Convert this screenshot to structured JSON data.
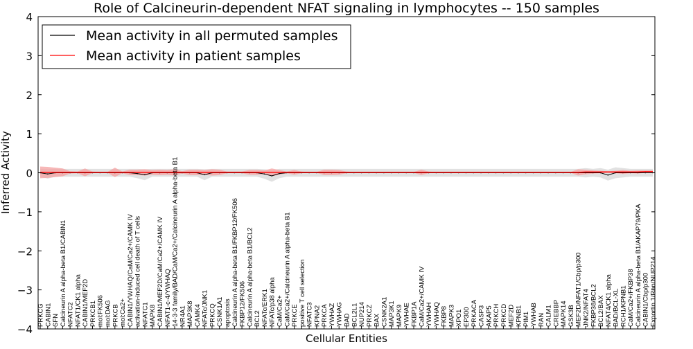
{
  "chart_data": {
    "type": "line",
    "title": "Role of Calcineurin-dependent NFAT signaling in lymphocytes -- 150 samples",
    "xlabel": "Cellular Entities",
    "ylabel": "Inferred Activity",
    "ylim": [
      -4,
      4
    ],
    "yticks": [
      "4",
      "3",
      "2",
      "1",
      "0",
      "−1",
      "−2",
      "−3",
      "−4"
    ],
    "ytick_values": [
      4,
      3,
      2,
      1,
      0,
      -1,
      -2,
      -3,
      -4
    ],
    "legend_position": "top-left",
    "grid": false,
    "categories": [
      "PRKCG",
      "CABIN1",
      "SFN",
      "Calcineurin A alpha-beta B1/CABIN1",
      "NFATC2",
      "NFAT1/CK1 alpha",
      "CABIN1/MEF2D",
      "PRKCB1",
      "mol:FK506",
      "mol:DAG",
      "PRKCB",
      "mol:Ca2+",
      "CABIN1/YWHAQ/CaM/Ca2+/CAMK IV",
      "activation-induced cell death of T cells",
      "NFATC1",
      "MAPK8",
      "CABIN1/MEF2D/CaM/Ca2+/CAMK IV",
      "NFAT1-c-4/YWHAQ",
      "14-3-3 family/BAD/CaM/Ca2+/Calcineurin A alpha-beta B1",
      "NR4A1",
      "MAP3K8",
      "CAMK4",
      "NFATc/JNK1",
      "PRKCQ",
      "CSNK1A1",
      "apoptosis",
      "Calcineurin A alpha-beta B1/FKBP12/FK506",
      "FKBP12/FK506",
      "Calcineurin A alpha-beta B1/BCL2",
      "BCL2",
      "NFATc/ERK1",
      "NFATc/p38 alpha",
      "CaM/Ca2+",
      "CaM/Ca2+/Calcineurin A alpha-beta B1",
      "PRKCE",
      "positive T cell selection",
      "NFATC3",
      "KPNA2",
      "PRKCA",
      "YWHAZ",
      "YWHAG",
      "BAD",
      "BCL2L1",
      "NUP214",
      "PRKCZ",
      "BAX",
      "CSNK2A1",
      "MAP3K1",
      "MAPK9",
      "YWHAE",
      "FKBP1A",
      "CaM/Ca2+/CAMK IV",
      "YWHAH",
      "YWHAQ",
      "FKBP8",
      "MAPK3",
      "XPO1",
      "EP300",
      "PRKACA",
      "CASP3",
      "AKAP5",
      "PRKCH",
      "PRKCD",
      "MEF2D",
      "KPNB1",
      "PIM1",
      "YWHAB",
      "RAN",
      "CALM1",
      "CREBBP",
      "MAPK14",
      "GSK3B",
      "MEF2D/NFAT1/Cbp/p300",
      "JNK2/NFAT4",
      "FKBP38/BCL2",
      "BCL2/BAX",
      "NFAT4/CK1 alpha",
      "BAD/BCL-XL",
      "RCH1/KPNB1",
      "CaM/Ca2+/FKBP38",
      "Calcineurin A alpha-beta B1/AKAP79/PKA",
      "CABIN1/Cbp/p300",
      "Exportin 1/Ran/NUP214"
    ],
    "series": [
      {
        "name": "Mean activity in all permuted samples",
        "color": "#000000",
        "band_color": "#d9d9d9",
        "values": [
          0,
          -0.03,
          0,
          0,
          0,
          0,
          0,
          0,
          0,
          0,
          0,
          0,
          0,
          -0.02,
          -0.05,
          0,
          0,
          0,
          0,
          0,
          0,
          0,
          -0.05,
          0,
          0,
          0,
          0,
          0,
          0,
          0,
          -0.03,
          -0.08,
          -0.02,
          0,
          0,
          0,
          0,
          0,
          0,
          0,
          0,
          0,
          0,
          0,
          0,
          0,
          0,
          0,
          0,
          0,
          0,
          0,
          0,
          0,
          0,
          0,
          0,
          0,
          0,
          0,
          0,
          0,
          0,
          0,
          0,
          0,
          0,
          0,
          0,
          0,
          0,
          0,
          0,
          0,
          0,
          0,
          -0.06,
          0,
          0,
          0,
          0,
          0,
          0
        ],
        "spread": [
          0.1,
          0.12,
          0.1,
          0.1,
          0.1,
          0.1,
          0.1,
          0.1,
          0.1,
          0.1,
          0.1,
          0.1,
          0.1,
          0.12,
          0.14,
          0.1,
          0.1,
          0.1,
          0.1,
          0.1,
          0.1,
          0.1,
          0.14,
          0.1,
          0.1,
          0.1,
          0.1,
          0.1,
          0.1,
          0.1,
          0.12,
          0.15,
          0.12,
          0.1,
          0.1,
          0.1,
          0.1,
          0.1,
          0.1,
          0.1,
          0.1,
          0.1,
          0.1,
          0.1,
          0.1,
          0.1,
          0.1,
          0.1,
          0.1,
          0.1,
          0.1,
          0.1,
          0.1,
          0.1,
          0.1,
          0.1,
          0.1,
          0.1,
          0.1,
          0.1,
          0.1,
          0.1,
          0.1,
          0.1,
          0.1,
          0.1,
          0.1,
          0.1,
          0.1,
          0.1,
          0.1,
          0.1,
          0.1,
          0.12,
          0.1,
          0.12,
          0.14,
          0.14,
          0.12,
          0.1,
          0.1,
          0.1,
          0.1
        ]
      },
      {
        "name": "Mean activity in patient samples",
        "color": "#ff0000",
        "band_color": "#f4a0a0",
        "values": [
          0.01,
          0.01,
          0.01,
          0.01,
          0.01,
          0.01,
          0.01,
          0.01,
          0.01,
          0.01,
          0.01,
          0.01,
          0.01,
          0.01,
          0.01,
          0.01,
          0.01,
          0.01,
          0.01,
          0.01,
          0.01,
          0.01,
          0.01,
          0.01,
          0.01,
          0.01,
          0.01,
          0.01,
          0.01,
          0.01,
          0.01,
          0.01,
          0.01,
          0.01,
          0.01,
          0.01,
          0.01,
          0.01,
          0.01,
          0.01,
          0.01,
          0.01,
          0.01,
          0.01,
          0.01,
          0.01,
          0.01,
          0.01,
          0.01,
          0.01,
          0.01,
          0.01,
          0.01,
          0.01,
          0.01,
          0.01,
          0.01,
          0.01,
          0.01,
          0.01,
          0.01,
          0.01,
          0.01,
          0.01,
          0.01,
          0.01,
          0.01,
          0.01,
          0.01,
          0.01,
          0.01,
          0.01,
          0.01,
          0.02,
          0.02,
          0.02,
          0.02,
          0.02,
          0.02,
          0.02,
          0.02,
          0.03,
          0.03
        ],
        "spread": [
          0.15,
          0.14,
          0.12,
          0.1,
          0.03,
          0.02,
          0.1,
          0.02,
          0.01,
          0.01,
          0.12,
          0.02,
          0.07,
          0.07,
          0.08,
          0.06,
          0.07,
          0.06,
          0.08,
          0.03,
          0.07,
          0.07,
          0.06,
          0.08,
          0.07,
          0.02,
          0.02,
          0.02,
          0.06,
          0.06,
          0.05,
          0.1,
          0.06,
          0.02,
          0.06,
          0.02,
          0.01,
          0.01,
          0.07,
          0.07,
          0.06,
          0.02,
          0.01,
          0.01,
          0.01,
          0.01,
          0.01,
          0.01,
          0.01,
          0.01,
          0.01,
          0.07,
          0.02,
          0.01,
          0.01,
          0.01,
          0.01,
          0.01,
          0.01,
          0.01,
          0.01,
          0.01,
          0.01,
          0.01,
          0.01,
          0.01,
          0.01,
          0.01,
          0.01,
          0.01,
          0.01,
          0.01,
          0.08,
          0.06,
          0.04,
          0.03,
          0.02,
          0.03,
          0.05,
          0.03,
          0.04,
          0.03,
          0.03
        ]
      }
    ]
  }
}
